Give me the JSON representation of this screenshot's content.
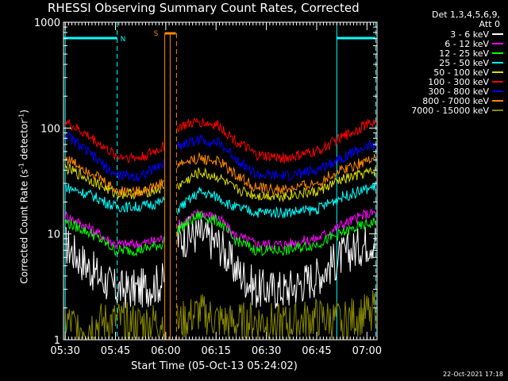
{
  "chart_data": {
    "type": "line",
    "title": "RHESSI Observing Summary Count Rates, Corrected",
    "xlabel": "Start Time (05-Oct-13 05:24:02)",
    "ylabel": "Corrected Count Rate (s",
    "ylabel_sup1": "-1",
    "ylabel_mid": " detector",
    "ylabel_sup2": "-1",
    "ylabel_end": ")",
    "yscale": "log",
    "ylim": [
      1,
      1000
    ],
    "xlim_minutes": [
      5.5,
      99
    ],
    "x_tick_minutes": [
      6,
      21,
      36,
      51,
      66,
      81,
      96
    ],
    "x_tick_labels": [
      "05:30",
      "05:45",
      "06:00",
      "06:15",
      "06:30",
      "06:45",
      "07:00"
    ],
    "y_tick_values": [
      1,
      10,
      100,
      1000
    ],
    "y_tick_labels": [
      "1",
      "10",
      "100",
      "1000"
    ],
    "legend_header": [
      "Det 1,3,4,5,6,9,",
      "Att 0"
    ],
    "legend_placement": "top-right outside",
    "series": [
      {
        "name": "3 - 6 keV",
        "color": "#ffffff",
        "points": [
          [
            6,
            8
          ],
          [
            14,
            4.5
          ],
          [
            21,
            3
          ],
          [
            28,
            3
          ],
          [
            35,
            3.5
          ],
          [
            36.5,
            4.5
          ],
          [
            38.5,
            5
          ],
          [
            39.5,
            9
          ],
          [
            46,
            10
          ],
          [
            52,
            8
          ],
          [
            56,
            5
          ],
          [
            63,
            3
          ],
          [
            72,
            3
          ],
          [
            81,
            4
          ],
          [
            88,
            6
          ],
          [
            95,
            8
          ],
          [
            98.5,
            9
          ]
        ]
      },
      {
        "name": "6 - 12 keV",
        "color": "#ff00ff",
        "points": [
          [
            6,
            15
          ],
          [
            14,
            11
          ],
          [
            21,
            8
          ],
          [
            28,
            8
          ],
          [
            35,
            9
          ],
          [
            36.5,
            11
          ],
          [
            38.5,
            12
          ],
          [
            39.5,
            12
          ],
          [
            46,
            16
          ],
          [
            52,
            14
          ],
          [
            56,
            10
          ],
          [
            63,
            8
          ],
          [
            72,
            8
          ],
          [
            81,
            9
          ],
          [
            88,
            12
          ],
          [
            95,
            15
          ],
          [
            98.5,
            16
          ]
        ]
      },
      {
        "name": "12 - 25 keV",
        "color": "#00ff00",
        "points": [
          [
            6,
            13
          ],
          [
            14,
            10
          ],
          [
            21,
            7
          ],
          [
            28,
            7
          ],
          [
            35,
            8
          ],
          [
            36.5,
            10
          ],
          [
            38.5,
            11
          ],
          [
            39.5,
            11
          ],
          [
            46,
            15
          ],
          [
            52,
            13
          ],
          [
            56,
            9
          ],
          [
            63,
            7
          ],
          [
            72,
            7
          ],
          [
            81,
            8
          ],
          [
            88,
            10
          ],
          [
            95,
            12
          ],
          [
            98.5,
            13
          ]
        ]
      },
      {
        "name": "25 - 50 keV",
        "color": "#00ffff",
        "points": [
          [
            6,
            28
          ],
          [
            14,
            23
          ],
          [
            21,
            18
          ],
          [
            28,
            18
          ],
          [
            35,
            20
          ],
          [
            36.5,
            21
          ],
          [
            38.5,
            22
          ],
          [
            39.5,
            17
          ],
          [
            46,
            25
          ],
          [
            52,
            22
          ],
          [
            56,
            18
          ],
          [
            63,
            16
          ],
          [
            72,
            16
          ],
          [
            81,
            17
          ],
          [
            88,
            22
          ],
          [
            95,
            26
          ],
          [
            98.5,
            28
          ]
        ]
      },
      {
        "name": "50 - 100 keV",
        "color": "#dddd00",
        "points": [
          [
            6,
            42
          ],
          [
            14,
            32
          ],
          [
            21,
            24
          ],
          [
            28,
            24
          ],
          [
            35,
            27
          ],
          [
            36.5,
            32
          ],
          [
            38.5,
            34
          ],
          [
            39.5,
            28
          ],
          [
            46,
            38
          ],
          [
            52,
            34
          ],
          [
            56,
            27
          ],
          [
            63,
            23
          ],
          [
            72,
            23
          ],
          [
            81,
            25
          ],
          [
            88,
            32
          ],
          [
            95,
            37
          ],
          [
            98.5,
            39
          ]
        ]
      },
      {
        "name": "100 - 300 keV",
        "color": "#ff0000",
        "points": [
          [
            6,
            115
          ],
          [
            14,
            80
          ],
          [
            21,
            55
          ],
          [
            28,
            52
          ],
          [
            35,
            65
          ],
          [
            36.5,
            75
          ],
          [
            38.5,
            80
          ],
          [
            39.5,
            102
          ],
          [
            46,
            115
          ],
          [
            52,
            105
          ],
          [
            56,
            80
          ],
          [
            63,
            55
          ],
          [
            72,
            52
          ],
          [
            81,
            60
          ],
          [
            88,
            80
          ],
          [
            95,
            105
          ],
          [
            98.5,
            115
          ]
        ]
      },
      {
        "name": "300 - 800 keV",
        "color": "#0000ff",
        "points": [
          [
            6,
            88
          ],
          [
            14,
            55
          ],
          [
            21,
            36
          ],
          [
            28,
            35
          ],
          [
            35,
            45
          ],
          [
            36.5,
            55
          ],
          [
            38.5,
            58
          ],
          [
            39.5,
            68
          ],
          [
            46,
            78
          ],
          [
            52,
            72
          ],
          [
            56,
            55
          ],
          [
            63,
            36
          ],
          [
            72,
            35
          ],
          [
            81,
            40
          ],
          [
            88,
            52
          ],
          [
            95,
            65
          ],
          [
            98.5,
            70
          ]
        ]
      },
      {
        "name": "800 - 7000 keV",
        "color": "#ff8800",
        "points": [
          [
            6,
            52
          ],
          [
            14,
            38
          ],
          [
            21,
            26
          ],
          [
            28,
            25
          ],
          [
            35,
            30
          ],
          [
            36.5,
            36
          ],
          [
            38.5,
            38
          ],
          [
            39.5,
            45
          ],
          [
            46,
            52
          ],
          [
            52,
            48
          ],
          [
            56,
            38
          ],
          [
            63,
            27
          ],
          [
            72,
            26
          ],
          [
            81,
            30
          ],
          [
            88,
            40
          ],
          [
            95,
            48
          ],
          [
            98.5,
            55
          ]
        ]
      },
      {
        "name": "7000 - 15000 keV",
        "color": "#888800",
        "points": [
          [
            6,
            1.5
          ],
          [
            10,
            1.3
          ],
          [
            14,
            1.4
          ],
          [
            21,
            1.5
          ],
          [
            28,
            1.4
          ],
          [
            35,
            1.5
          ],
          [
            36.5,
            1.3
          ],
          [
            39.5,
            1.4
          ],
          [
            46,
            1.8
          ],
          [
            52,
            1.5
          ],
          [
            56,
            1.4
          ],
          [
            63,
            1.5
          ],
          [
            72,
            1.4
          ],
          [
            81,
            1.6
          ],
          [
            88,
            1.5
          ],
          [
            95,
            1.7
          ],
          [
            98.5,
            2
          ]
        ]
      }
    ],
    "annotations": [
      {
        "text": "N",
        "color": "#00ffff"
      },
      {
        "text": "S",
        "color": "#ff8800"
      }
    ]
  },
  "footer": {
    "timestamp": "22-Oct-2021 17:18"
  }
}
